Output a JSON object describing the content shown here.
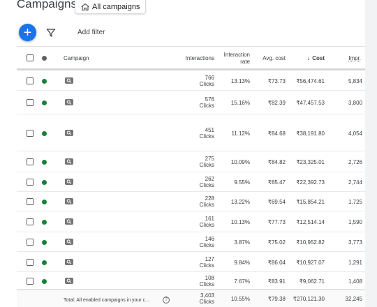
{
  "header": {
    "title": "Campaigns",
    "scope_top": "",
    "scope_label": "All campaigns"
  },
  "toolbar": {
    "add_label": "+",
    "add_filter_label": "Add filter"
  },
  "table": {
    "columns": {
      "campaign": "Campaign",
      "interactions": "Interactions",
      "interaction_rate_l1": "Interaction",
      "interaction_rate_l2": "rate",
      "avg_cost": "Avg. cost",
      "cost": "Cost",
      "cost_sort_arrow": "↓",
      "impr": "Impr."
    },
    "rows": [
      {
        "name": "",
        "interactions": "766",
        "clicks": "Clicks",
        "rate": "13.13%",
        "avg_cost": "₹73.73",
        "cost": "₹56,474.61",
        "impr": "5,834",
        "status": "enabled"
      },
      {
        "name": "",
        "interactions": "576",
        "clicks": "Clicks",
        "rate": "15.16%",
        "avg_cost": "₹82.39",
        "cost": "₹47,457.53",
        "impr": "3,800",
        "status": "enabled"
      },
      {
        "name": "",
        "interactions": "451",
        "clicks": "Clicks",
        "rate": "11.12%",
        "avg_cost": "₹84.68",
        "cost": "₹38,191.80",
        "impr": "4,054",
        "status": "enabled"
      },
      {
        "name": "",
        "interactions": "275",
        "clicks": "Clicks",
        "rate": "10.09%",
        "avg_cost": "₹84.82",
        "cost": "₹23,325.01",
        "impr": "2,726",
        "status": "enabled"
      },
      {
        "name": "",
        "interactions": "262",
        "clicks": "Clicks",
        "rate": "9.55%",
        "avg_cost": "₹85.47",
        "cost": "₹22,392.73",
        "impr": "2,744",
        "status": "enabled"
      },
      {
        "name": "",
        "interactions": "228",
        "clicks": "Clicks",
        "rate": "13.22%",
        "avg_cost": "₹69.54",
        "cost": "₹15,854.21",
        "impr": "1,725",
        "status": "enabled"
      },
      {
        "name": "",
        "interactions": "161",
        "clicks": "Clicks",
        "rate": "10.13%",
        "avg_cost": "₹77.73",
        "cost": "₹12,514.14",
        "impr": "1,590",
        "status": "enabled"
      },
      {
        "name": "",
        "interactions": "146",
        "clicks": "Clicks",
        "rate": "3.87%",
        "avg_cost": "₹75.02",
        "cost": "₹10,952.82",
        "impr": "3,773",
        "status": "enabled"
      },
      {
        "name": "",
        "interactions": "127",
        "clicks": "Clicks",
        "rate": "9.84%",
        "avg_cost": "₹86.04",
        "cost": "₹10,927.07",
        "impr": "1,291",
        "status": "enabled"
      },
      {
        "name": "",
        "interactions": "108",
        "clicks": "Clicks",
        "rate": "7.67%",
        "avg_cost": "₹83.91",
        "cost": "₹9,062.71",
        "impr": "1,408",
        "status": "enabled"
      }
    ],
    "total": {
      "label": "Total: All enabled campaigns in your c...",
      "help": "?",
      "interactions": "3,403",
      "clicks": "Clicks",
      "rate": "10.55%",
      "avg_cost": "₹79.38",
      "cost": "₹270,121.30",
      "impr": "32,245"
    }
  },
  "colors": {
    "accent": "#1a73e8",
    "enabled": "#188038",
    "neutral_dot": "#5f6368"
  }
}
